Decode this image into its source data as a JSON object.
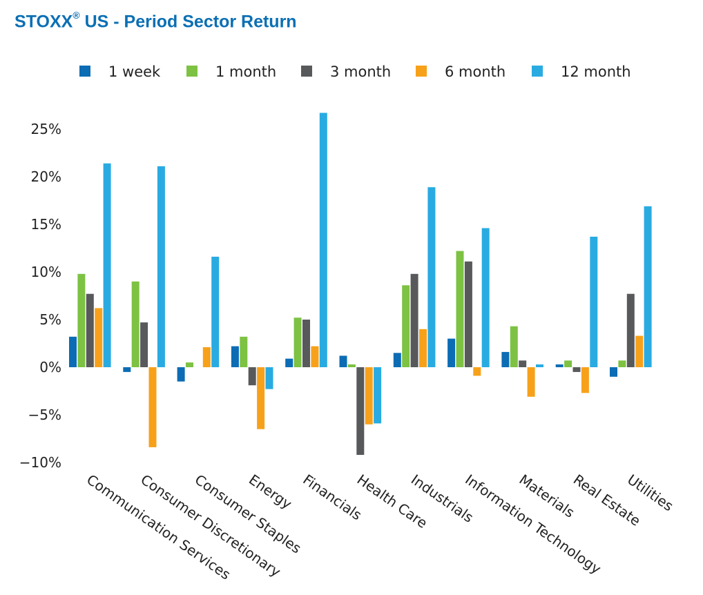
{
  "title_main": "STOXX",
  "title_reg": "®",
  "title_rest": " US - Period Sector Return",
  "chart_data": {
    "type": "bar",
    "title": "STOXX® US - Period Sector Return",
    "xlabel": "",
    "ylabel": "",
    "ylim": [
      -10,
      27
    ],
    "yticks": [
      25,
      20,
      15,
      10,
      5,
      0,
      -5,
      -10
    ],
    "ytick_labels": [
      "25%",
      "20%",
      "15%",
      "10%",
      "5%",
      "0%",
      "−5%",
      "−10%"
    ],
    "grid": false,
    "legend_position": "top",
    "categories": [
      "Communication Services",
      "Consumer Discretionary",
      "Consumer Staples",
      "Energy",
      "Financials",
      "Health Care",
      "Industrials",
      "Information Technology",
      "Materials",
      "Real Estate",
      "Utilities"
    ],
    "series": [
      {
        "name": "1 week",
        "color": "#0c6cb4",
        "values": [
          3.2,
          -0.5,
          -1.5,
          2.2,
          0.9,
          1.2,
          1.5,
          3.0,
          1.6,
          0.3,
          -1.0
        ]
      },
      {
        "name": "1 month",
        "color": "#7dc243",
        "values": [
          9.8,
          9.0,
          0.5,
          3.2,
          5.2,
          0.3,
          8.6,
          12.2,
          4.3,
          0.7,
          0.7
        ]
      },
      {
        "name": "3 month",
        "color": "#58595b",
        "values": [
          7.7,
          4.7,
          0.0,
          -1.9,
          5.0,
          -9.2,
          9.8,
          11.1,
          0.7,
          -0.5,
          7.7
        ]
      },
      {
        "name": "6 month",
        "color": "#f7a11a",
        "values": [
          6.2,
          -8.4,
          2.1,
          -6.5,
          2.2,
          -6.0,
          4.0,
          -0.9,
          -3.1,
          -2.7,
          3.3
        ]
      },
      {
        "name": "12 month",
        "color": "#29abe2",
        "values": [
          21.4,
          21.1,
          11.6,
          -2.3,
          26.7,
          -5.9,
          18.9,
          14.6,
          0.3,
          13.7,
          16.9
        ]
      }
    ]
  }
}
